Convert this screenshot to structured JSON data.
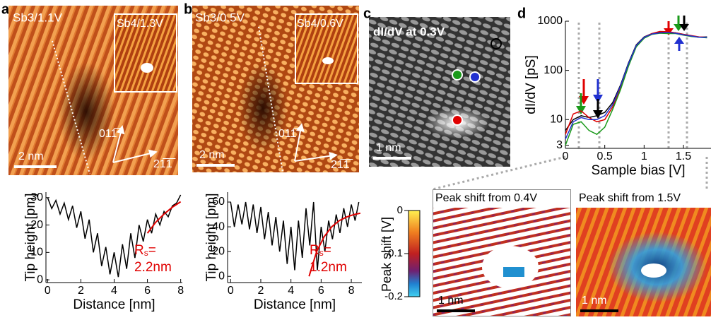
{
  "panels": {
    "a": {
      "label": "a",
      "image_label": "Sb3/1.1V",
      "inset_label": "Sb4/1.3V",
      "scale_bar": "2 nm",
      "direction_1": "011̅",
      "direction_2": "21̅1̅"
    },
    "b": {
      "label": "b",
      "image_label": "Sb3/0.5V",
      "inset_label": "Sb4/0.6V",
      "scale_bar": "2 nm",
      "direction_1": "011̅",
      "direction_2": "21̅1̅"
    },
    "c": {
      "label": "c",
      "image_label": "dI/dV at 0.3V",
      "scale_bar": "1 nm"
    },
    "d": {
      "label": "d"
    },
    "maps": [
      {
        "title": "Peak shift from 0.4V",
        "scale_bar": "1 nm"
      },
      {
        "title": "Peak shift from 1.5V",
        "scale_bar": "1 nm"
      }
    ],
    "colorbar": {
      "label": "Peak shift [V]",
      "lim": [
        0,
        -0.2
      ],
      "ticks": [
        0,
        -0.1,
        -0.2
      ]
    }
  },
  "chart_data": [
    {
      "type": "line",
      "x_label": "Distance [nm]",
      "y_label": "Tip height [pm]",
      "xlim": [
        -0.1,
        8.1
      ],
      "ylim": [
        -1,
        32
      ],
      "xticks": [
        0,
        2,
        4,
        6,
        8
      ],
      "yticks": [
        0,
        10,
        20,
        30
      ],
      "fit_symbol": "R",
      "fit_subscript": "s",
      "fit_eq": "=",
      "fit_value": "2.2nm",
      "series": [
        {
          "color": "#000000",
          "x": [
            0,
            0.25,
            0.5,
            0.75,
            1,
            1.25,
            1.5,
            1.75,
            2,
            2.25,
            2.5,
            2.75,
            3,
            3.25,
            3.5,
            3.75,
            4,
            4.25,
            4.5,
            4.75,
            5,
            5.25,
            5.5,
            5.75,
            6,
            6.25,
            6.5,
            6.75,
            7,
            7.25,
            7.5,
            7.75,
            8
          ],
          "values": [
            30,
            26,
            29,
            24,
            28,
            22,
            27,
            19,
            25,
            15,
            22,
            10,
            17,
            5,
            12,
            2,
            10,
            1,
            13,
            4,
            17,
            8,
            20,
            14,
            22,
            17,
            24,
            20,
            25,
            23,
            27,
            28,
            31
          ]
        },
        {
          "color": "#e00000",
          "x": [
            6,
            6.5,
            7,
            7.5,
            8
          ],
          "values": [
            17,
            21,
            24,
            26.5,
            28.5
          ]
        }
      ]
    },
    {
      "type": "line",
      "x_label": "Distance [nm]",
      "y_label": "Tip height [pm]",
      "xlim": [
        -0.2,
        8.7
      ],
      "ylim": [
        -5,
        68
      ],
      "xticks": [
        0,
        2,
        4,
        6,
        8
      ],
      "yticks": [
        0,
        20,
        40,
        60
      ],
      "fit_symbol": "R",
      "fit_subscript": "s",
      "fit_eq": "=",
      "fit_value": "1.2nm",
      "series": [
        {
          "color": "#000000",
          "x": [
            0,
            0.25,
            0.5,
            0.75,
            1,
            1.25,
            1.5,
            1.75,
            2,
            2.25,
            2.5,
            2.75,
            3,
            3.25,
            3.5,
            3.75,
            4,
            4.25,
            4.5,
            4.75,
            5,
            5.25,
            5.5,
            5.75,
            6,
            6.25,
            6.5,
            6.75,
            7,
            7.25,
            7.5,
            7.75,
            8,
            8.25,
            8.5
          ],
          "values": [
            60,
            40,
            58,
            42,
            60,
            38,
            58,
            35,
            56,
            30,
            52,
            25,
            48,
            20,
            45,
            10,
            40,
            5,
            45,
            15,
            55,
            25,
            60,
            5,
            40,
            20,
            45,
            30,
            50,
            35,
            55,
            40,
            58,
            45,
            60
          ]
        },
        {
          "color": "#e00000",
          "x": [
            5.2,
            5.7,
            6.2,
            6.7,
            7.2,
            7.7,
            8.2,
            8.6
          ],
          "values": [
            0,
            20,
            32,
            40,
            45,
            48,
            50,
            51
          ]
        }
      ]
    },
    {
      "type": "line",
      "log_y": true,
      "x_label": "Sample bias [V]",
      "y_label": "dI/dV [pS]",
      "xlim": [
        0,
        1.85
      ],
      "ylim": [
        2.6,
        1000
      ],
      "xticks": [
        0,
        0.5,
        1,
        1.5
      ],
      "yticks": [
        3,
        10,
        100,
        1000
      ],
      "x": [
        0,
        0.1,
        0.2,
        0.3,
        0.4,
        0.5,
        0.6,
        0.7,
        0.8,
        0.9,
        1,
        1.1,
        1.2,
        1.3,
        1.4,
        1.5,
        1.6,
        1.7,
        1.8
      ],
      "series": [
        {
          "color": "#000000",
          "values": [
            6,
            10,
            12,
            11,
            12,
            14,
            22,
            50,
            140,
            330,
            480,
            560,
            590,
            600,
            580,
            540,
            500,
            470,
            480
          ]
        },
        {
          "color": "#e00000",
          "values": [
            5,
            13,
            15,
            11,
            9,
            10,
            18,
            45,
            130,
            320,
            470,
            560,
            620,
            610,
            580,
            540,
            510,
            480,
            470
          ]
        },
        {
          "color": "#1a9a1a",
          "values": [
            3,
            8,
            9,
            6,
            5,
            7,
            16,
            40,
            120,
            300,
            450,
            540,
            570,
            560,
            560,
            520,
            490,
            470,
            460
          ]
        },
        {
          "color": "#2030d0",
          "values": [
            4,
            9,
            11,
            10,
            10,
            12,
            20,
            48,
            135,
            320,
            470,
            550,
            580,
            590,
            570,
            530,
            500,
            470,
            470
          ]
        }
      ]
    }
  ]
}
